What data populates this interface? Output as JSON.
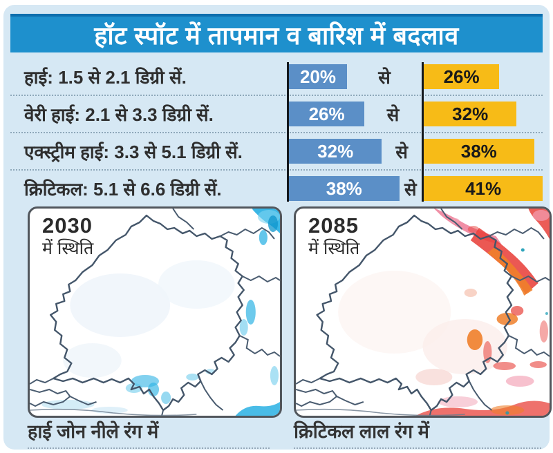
{
  "title": "हॉट स्पॉट में तापमान व बारिश में बदलाव",
  "labels": {
    "se": "से"
  },
  "rows": [
    {
      "label": "हाई: 1.5 से 2.1 डिग्री सें.",
      "from": "20%",
      "to": "26%"
    },
    {
      "label": "वेरी हाई: 2.1 से 3.3 डिग्री सें.",
      "from": "26%",
      "to": "32%"
    },
    {
      "label": "एक्स्ट्रीम हाई: 3.3 से 5.1 डिग्री सें.",
      "from": "32%",
      "to": "38%"
    },
    {
      "label": "क्रिटिकल: 5.1 से 6.6 डिग्री सें.",
      "from": "38%",
      "to": "41%"
    }
  ],
  "chart_data": {
    "type": "bar",
    "title": "हॉट स्पॉट में तापमान व बारिश में बदलाव",
    "categories": [
      "हाई: 1.5 से 2.1 डिग्री सें.",
      "वेरी हाई: 2.1 से 3.3 डिग्री सें.",
      "एक्स्ट्रीम हाई: 3.3 से 5.1 डिग्री सें.",
      "क्रिटिकल: 5.1 से 6.6 डिग्री सें."
    ],
    "series": [
      {
        "name": "start",
        "values": [
          20,
          26,
          32,
          38
        ],
        "color": "#5b8fc7"
      },
      {
        "name": "end",
        "values": [
          26,
          32,
          38,
          41
        ],
        "color": "#f7bb17"
      }
    ],
    "connector_label": "से",
    "value_unit": "%",
    "legend": "none",
    "grid": "off",
    "orientation": "horizontal"
  },
  "maps": [
    {
      "year": "2030",
      "subtitle": "में स्थिति",
      "caption": "हाई जोन नीले रंग में"
    },
    {
      "year": "2085",
      "subtitle": "में स्थिति",
      "caption": "क्रिटिकल लाल रंग में"
    }
  ],
  "colors": {
    "title_bar": "#1e90cd",
    "title_bar_edge": "#0e6fae",
    "panel_bg": "#d6e8f4",
    "bar_start": "#5b8fc7",
    "bar_end": "#f7bb17",
    "map_high_blue": "#29b0e3",
    "map_critical_red": "#e8413b",
    "map_orange": "#ef7f2a",
    "map_pink": "#ec7390"
  }
}
